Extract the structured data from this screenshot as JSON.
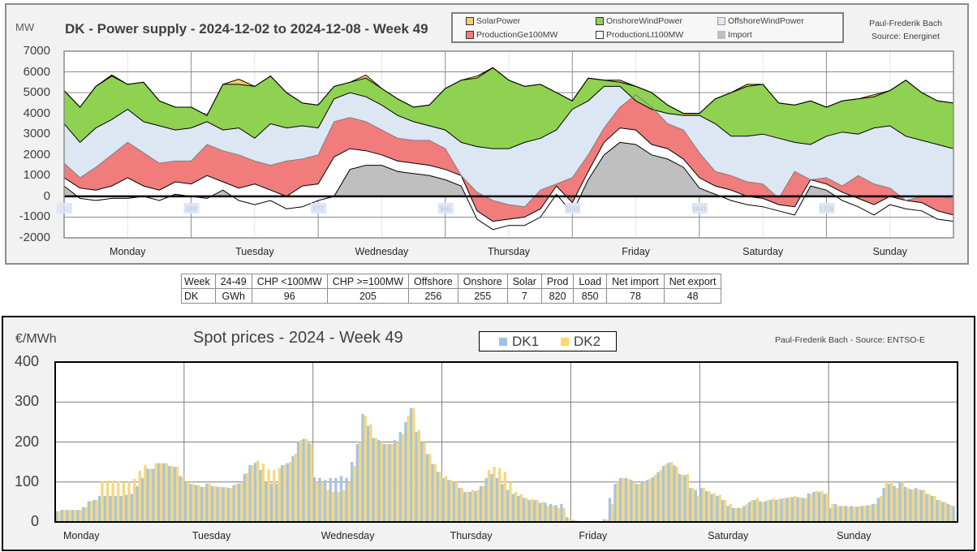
{
  "top_panel": {
    "unit": "MW",
    "title": "DK - Power supply - 2024-12-02 to 2024-12-08 - Week 49",
    "credit_line1": "Paul-Frederik Bach",
    "credit_line2": "Source: Energinet",
    "legend": [
      {
        "label": "SolarPower",
        "color": "#f7cd6a"
      },
      {
        "label": "OnshoreWindPower",
        "color": "#8fd150"
      },
      {
        "label": "OffshoreWindPower",
        "color": "#dde7f3"
      },
      {
        "label": "ProductionGe100MW",
        "color": "#f07c7c"
      },
      {
        "label": "ProductionLt100MW",
        "color": "#ffffff"
      },
      {
        "label": "Import",
        "color": "#bfbfbf"
      }
    ]
  },
  "summary_table": {
    "header": [
      "Week",
      "24-49",
      "CHP <100MW",
      "CHP >=100MW",
      "Offshore",
      "Onshore",
      "Solar",
      "Prod",
      "Load",
      "Net import",
      "Net export"
    ],
    "row": [
      "DK",
      "GWh",
      "96",
      "205",
      "256",
      "255",
      "7",
      "820",
      "850",
      "78",
      "48"
    ]
  },
  "bottom_panel": {
    "unit": "€/MWh",
    "title": "Spot prices - 2024 - Week 49",
    "credit": "Paul-Frederik Bach - Source: ENTSO-E",
    "legend": [
      {
        "label": "DK1",
        "color": "#9dc3e6"
      },
      {
        "label": "DK2",
        "color": "#ffd966"
      }
    ]
  },
  "chart_data": [
    {
      "type": "area",
      "title": "DK - Power supply - 2024-12-02 to 2024-12-08 - Week 49",
      "ylabel": "MW",
      "ylim": [
        -2000,
        7000
      ],
      "yticks": [
        7000,
        6000,
        5000,
        4000,
        3000,
        2000,
        1000,
        0,
        -1000,
        -2000
      ],
      "x_day_labels": [
        "Monday",
        "Tuesday",
        "Wednesday",
        "Thursday",
        "Friday",
        "Saturday",
        "Sunday"
      ],
      "x_index_ticks": [
        "1",
        "289",
        "577",
        "865",
        "1153",
        "1441",
        "1729"
      ],
      "x_step_hours": 3,
      "grid": true,
      "stacked_levels_note": "cumulative top of each layer, MW",
      "series": [
        {
          "name": "Import",
          "values": [
            500,
            -100,
            -200,
            -100,
            -100,
            0,
            -200,
            100,
            0,
            -100,
            300,
            -200,
            -400,
            -200,
            -600,
            -500,
            -200,
            0,
            1300,
            1500,
            1500,
            1200,
            1100,
            1000,
            800,
            500,
            -1100,
            -1600,
            -1400,
            -1400,
            -1000,
            100,
            -800,
            800,
            2000,
            2600,
            2500,
            2000,
            1800,
            1400,
            400,
            100,
            -200,
            -400,
            -500,
            -700,
            -900,
            500,
            300,
            -200,
            -500,
            -900,
            -400,
            -600,
            -700,
            -1100,
            -1200
          ]
        },
        {
          "name": "ProductionLt100MW",
          "values": [
            900,
            400,
            300,
            500,
            900,
            500,
            300,
            700,
            600,
            1000,
            700,
            400,
            600,
            300,
            0,
            500,
            600,
            1900,
            2300,
            2200,
            2000,
            1700,
            1600,
            1500,
            1300,
            1000,
            -700,
            -1200,
            -1100,
            -1000,
            -600,
            500,
            -300,
            1200,
            2600,
            3300,
            3200,
            2500,
            2300,
            1800,
            900,
            500,
            300,
            0,
            -100,
            -400,
            -500,
            800,
            600,
            200,
            -100,
            -400,
            0,
            -200,
            -300,
            -700,
            -900
          ]
        },
        {
          "name": "ProductionGe100MW",
          "values": [
            1600,
            900,
            1400,
            2000,
            2600,
            2100,
            1600,
            1700,
            1700,
            2500,
            2200,
            2000,
            1700,
            1500,
            1700,
            1800,
            2000,
            3600,
            3800,
            3600,
            3200,
            2800,
            2700,
            2700,
            2300,
            1000,
            200,
            -200,
            -400,
            -500,
            300,
            600,
            900,
            2000,
            3300,
            4300,
            4900,
            4300,
            3500,
            3200,
            2100,
            1200,
            1000,
            700,
            600,
            -100,
            1200,
            800,
            900,
            500,
            1000,
            600,
            400,
            -200,
            0,
            0,
            -100
          ]
        },
        {
          "name": "OffshoreWindPower",
          "values": [
            3500,
            2600,
            3300,
            3700,
            4200,
            3600,
            3400,
            3200,
            3300,
            3600,
            3200,
            3300,
            2800,
            3500,
            3300,
            3400,
            3300,
            4700,
            5000,
            4800,
            4400,
            3900,
            3600,
            3400,
            3200,
            2600,
            2400,
            2300,
            2300,
            2600,
            2800,
            3200,
            4200,
            4600,
            5300,
            5300,
            4600,
            4200,
            4000,
            3900,
            3900,
            3500,
            2900,
            2900,
            3000,
            2800,
            2600,
            2500,
            2900,
            3100,
            3000,
            3300,
            3400,
            2900,
            2700,
            2500,
            2300
          ]
        },
        {
          "name": "OnshoreWindPower",
          "values": [
            5100,
            4300,
            5300,
            5800,
            5400,
            5500,
            4600,
            4300,
            4300,
            3900,
            5400,
            5400,
            5300,
            5800,
            5000,
            4500,
            4400,
            5300,
            5500,
            5700,
            5200,
            4700,
            4300,
            4400,
            5200,
            5600,
            5700,
            6200,
            5600,
            5300,
            5400,
            5000,
            4600,
            5700,
            5600,
            5500,
            5300,
            5000,
            4400,
            4000,
            4000,
            4700,
            5000,
            5300,
            5400,
            4500,
            4400,
            4600,
            4300,
            4600,
            4700,
            4800,
            5100,
            5600,
            5000,
            4600,
            4500
          ]
        },
        {
          "name": "SolarPower",
          "values": [
            5100,
            4300,
            5300,
            5850,
            5400,
            5500,
            4600,
            4300,
            4300,
            3900,
            5400,
            5650,
            5300,
            5800,
            5000,
            4500,
            4400,
            5300,
            5500,
            5850,
            5200,
            4700,
            4300,
            4400,
            5200,
            5600,
            5800,
            6200,
            5600,
            5300,
            5400,
            5000,
            4600,
            5700,
            5600,
            5600,
            5300,
            5000,
            4400,
            4000,
            4000,
            4700,
            5000,
            5400,
            5400,
            4500,
            4400,
            4600,
            4300,
            4600,
            4700,
            4900,
            5100,
            5600,
            5000,
            4600,
            4500
          ]
        }
      ]
    },
    {
      "type": "bar",
      "title": "Spot prices - 2024 - Week 49",
      "ylabel": "€/MWh",
      "ylim": [
        0,
        400
      ],
      "yticks": [
        400,
        300,
        200,
        100,
        0
      ],
      "x_day_labels": [
        "Monday",
        "Tuesday",
        "Wednesday",
        "Thursday",
        "Friday",
        "Saturday",
        "Sunday"
      ],
      "x_unit": "hour",
      "grid": true,
      "legend_position": "top-center",
      "series": [
        {
          "name": "DK1",
          "values": [
            27,
            30,
            30,
            30,
            30,
            37,
            52,
            55,
            65,
            65,
            65,
            65,
            65,
            68,
            70,
            90,
            110,
            133,
            133,
            147,
            147,
            140,
            138,
            115,
            100,
            95,
            92,
            88,
            96,
            90,
            88,
            87,
            85,
            92,
            96,
            120,
            142,
            148,
            130,
            100,
            96,
            96,
            142,
            147,
            165,
            200,
            208,
            197,
            112,
            110,
            105,
            110,
            110,
            115,
            110,
            150,
            195,
            270,
            240,
            210,
            205,
            195,
            195,
            205,
            225,
            250,
            285,
            225,
            200,
            170,
            145,
            125,
            110,
            105,
            100,
            85,
            75,
            75,
            77,
            90,
            110,
            120,
            110,
            95,
            80,
            70,
            65,
            60,
            55,
            55,
            48,
            48,
            45,
            42,
            45,
            12,
            5,
            3,
            1,
            0,
            0,
            1,
            7,
            60,
            95,
            110,
            110,
            105,
            95,
            100,
            105,
            112,
            125,
            140,
            148,
            142,
            120,
            117,
            85,
            80,
            85,
            77,
            70,
            65,
            55,
            40,
            35,
            35,
            40,
            50,
            55,
            52,
            52,
            55,
            55,
            58,
            60,
            62,
            62,
            60,
            72,
            75,
            75,
            70,
            35,
            45,
            40,
            40,
            40,
            38,
            40,
            42,
            45,
            60,
            85,
            95,
            90,
            100,
            88,
            82,
            85,
            80,
            70,
            65,
            55,
            50,
            45,
            40
          ]
        },
        {
          "name": "DK2",
          "values": [
            27,
            30,
            30,
            30,
            30,
            37,
            52,
            55,
            102,
            103,
            103,
            102,
            100,
            100,
            108,
            128,
            143,
            133,
            147,
            147,
            147,
            140,
            138,
            113,
            100,
            95,
            92,
            88,
            96,
            90,
            88,
            87,
            85,
            95,
            97,
            122,
            142,
            153,
            146,
            131,
            130,
            135,
            143,
            150,
            170,
            205,
            208,
            195,
            100,
            100,
            80,
            75,
            75,
            80,
            100,
            140,
            200,
            265,
            245,
            210,
            200,
            195,
            195,
            200,
            220,
            265,
            285,
            230,
            200,
            170,
            145,
            125,
            115,
            105,
            100,
            85,
            75,
            80,
            80,
            90,
            130,
            138,
            135,
            125,
            100,
            75,
            70,
            60,
            57,
            55,
            50,
            40,
            40,
            35,
            35,
            10,
            5,
            3,
            1,
            0,
            0,
            1,
            5,
            45,
            100,
            110,
            108,
            100,
            95,
            100,
            108,
            118,
            130,
            145,
            150,
            138,
            118,
            120,
            85,
            65,
            85,
            77,
            72,
            68,
            55,
            45,
            35,
            35,
            45,
            55,
            60,
            50,
            55,
            58,
            58,
            60,
            62,
            65,
            62,
            60,
            70,
            78,
            78,
            72,
            45,
            40,
            40,
            38,
            38,
            40,
            40,
            42,
            45,
            65,
            100,
            100,
            85,
            100,
            85,
            82,
            82,
            80,
            70,
            65,
            55,
            50,
            42,
            0
          ]
        }
      ]
    }
  ]
}
